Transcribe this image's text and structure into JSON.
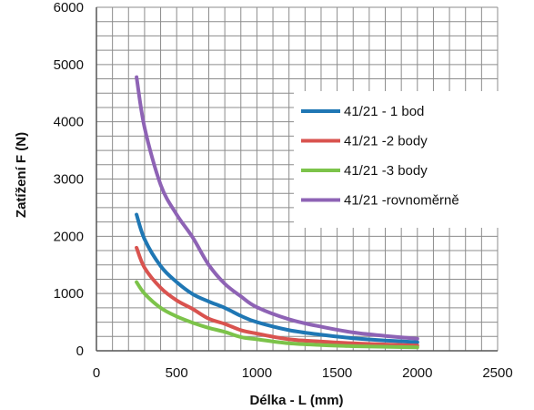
{
  "chart_data": {
    "type": "line",
    "xlabel": "Délka - L (mm)",
    "ylabel": "Zatížení F (N)",
    "xlim": [
      0,
      2500
    ],
    "ylim": [
      0,
      6000
    ],
    "x_ticks": [
      0,
      500,
      1000,
      1500,
      2000,
      2500
    ],
    "y_ticks": [
      0,
      1000,
      2000,
      3000,
      4000,
      5000,
      6000
    ],
    "x_tick_labels": [
      "0",
      "500",
      "1000",
      "1500",
      "2000",
      "2500"
    ],
    "y_tick_labels": [
      "0",
      "1000",
      "2000",
      "3000",
      "4000",
      "5000",
      "6000"
    ],
    "grid": true,
    "minor_grid_x_step": 100,
    "minor_grid_y_step": 250,
    "legend_position": "right",
    "x": [
      250,
      300,
      400,
      500,
      600,
      700,
      800,
      900,
      1000,
      1200,
      1400,
      1600,
      1800,
      2000
    ],
    "series": [
      {
        "name": "41/21 - 1 bod",
        "color": "#1f77b4",
        "values": [
          2380,
          1950,
          1480,
          1200,
          990,
          860,
          750,
          610,
          500,
          360,
          280,
          220,
          180,
          150
        ]
      },
      {
        "name": "41/21 -2 body",
        "color": "#d9534f",
        "values": [
          1800,
          1450,
          1100,
          880,
          730,
          560,
          470,
          360,
          300,
          200,
          160,
          130,
          110,
          90
        ]
      },
      {
        "name": "41/21 -3 body",
        "color": "#7cc34a",
        "values": [
          1200,
          1000,
          750,
          600,
          490,
          400,
          330,
          240,
          200,
          130,
          100,
          80,
          70,
          60
        ]
      },
      {
        "name": "41/21 -rovnoměrně",
        "color": "#8e63b5",
        "values": [
          4780,
          3900,
          2900,
          2380,
          1980,
          1500,
          1170,
          950,
          760,
          550,
          420,
          320,
          260,
          210
        ]
      }
    ]
  }
}
